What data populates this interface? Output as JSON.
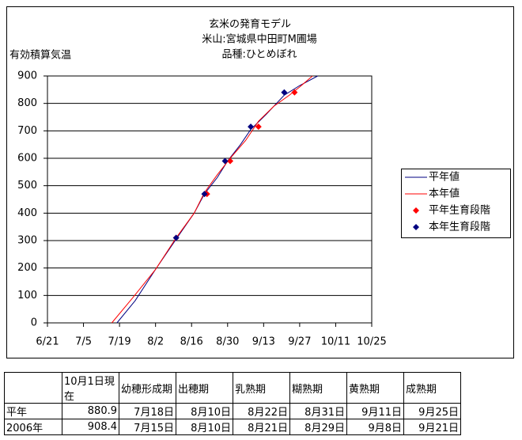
{
  "chart_data": {
    "type": "line",
    "title": [
      "玄米の発育モデル",
      "米山:宮城県中田町M圃場",
      "品種:ひとめぼれ"
    ],
    "y_label": "有効積算気温",
    "xlim": [
      172,
      298
    ],
    "xticks": [
      {
        "value": 172,
        "label": "6/21"
      },
      {
        "value": 186,
        "label": "7/5"
      },
      {
        "value": 200,
        "label": "7/19"
      },
      {
        "value": 214,
        "label": "8/2"
      },
      {
        "value": 228,
        "label": "8/16"
      },
      {
        "value": 242,
        "label": "8/30"
      },
      {
        "value": 256,
        "label": "9/13"
      },
      {
        "value": 270,
        "label": "9/27"
      },
      {
        "value": 284,
        "label": "10/11"
      },
      {
        "value": 298,
        "label": "10/25"
      }
    ],
    "ylim": [
      0,
      900
    ],
    "yticks": [
      0,
      100,
      200,
      300,
      400,
      500,
      600,
      700,
      800,
      900
    ],
    "grid": true,
    "legend": "right",
    "series": [
      {
        "name": "平年値",
        "color": "#000080",
        "mark": "line",
        "x": [
          199,
          206,
          214,
          222,
          229,
          233,
          238,
          242,
          247,
          251,
          257,
          264,
          270,
          277
        ],
        "values": [
          0,
          80,
          195,
          305,
          400,
          470,
          530,
          590,
          650,
          705,
          760,
          830,
          865,
          900
        ]
      },
      {
        "name": "本年値",
        "color": "#ff0000",
        "mark": "line",
        "x": [
          197,
          205,
          214,
          222,
          229,
          233,
          238,
          243,
          249,
          254,
          260,
          266,
          270,
          275
        ],
        "values": [
          0,
          90,
          195,
          310,
          400,
          475,
          540,
          600,
          665,
          735,
          790,
          830,
          860,
          900
        ]
      },
      {
        "name": "平年生育段階",
        "color": "#ff0000",
        "mark": "diamond",
        "x": [
          222,
          234,
          243,
          254,
          268
        ],
        "values": [
          310,
          470,
          590,
          715,
          840
        ]
      },
      {
        "name": "本年生育段階",
        "color": "#000080",
        "mark": "diamond",
        "x": [
          222,
          233,
          241,
          251,
          264
        ],
        "values": [
          310,
          470,
          590,
          715,
          840
        ]
      }
    ]
  },
  "table": {
    "header": [
      "10月1日現在",
      "幼穂形成期",
      "出穂期",
      "乳熟期",
      "糊熟期",
      "黄熟期",
      "成熟期"
    ],
    "rows": [
      [
        "平年",
        880.9,
        "7月18日",
        "8月10日",
        "8月22日",
        "8月31日",
        "9月11日",
        "9月25日"
      ],
      [
        "2006年",
        908.4,
        "7月15日",
        "8月10日",
        "8月21日",
        "8月29日",
        "9月8日",
        "9月21日"
      ]
    ]
  }
}
